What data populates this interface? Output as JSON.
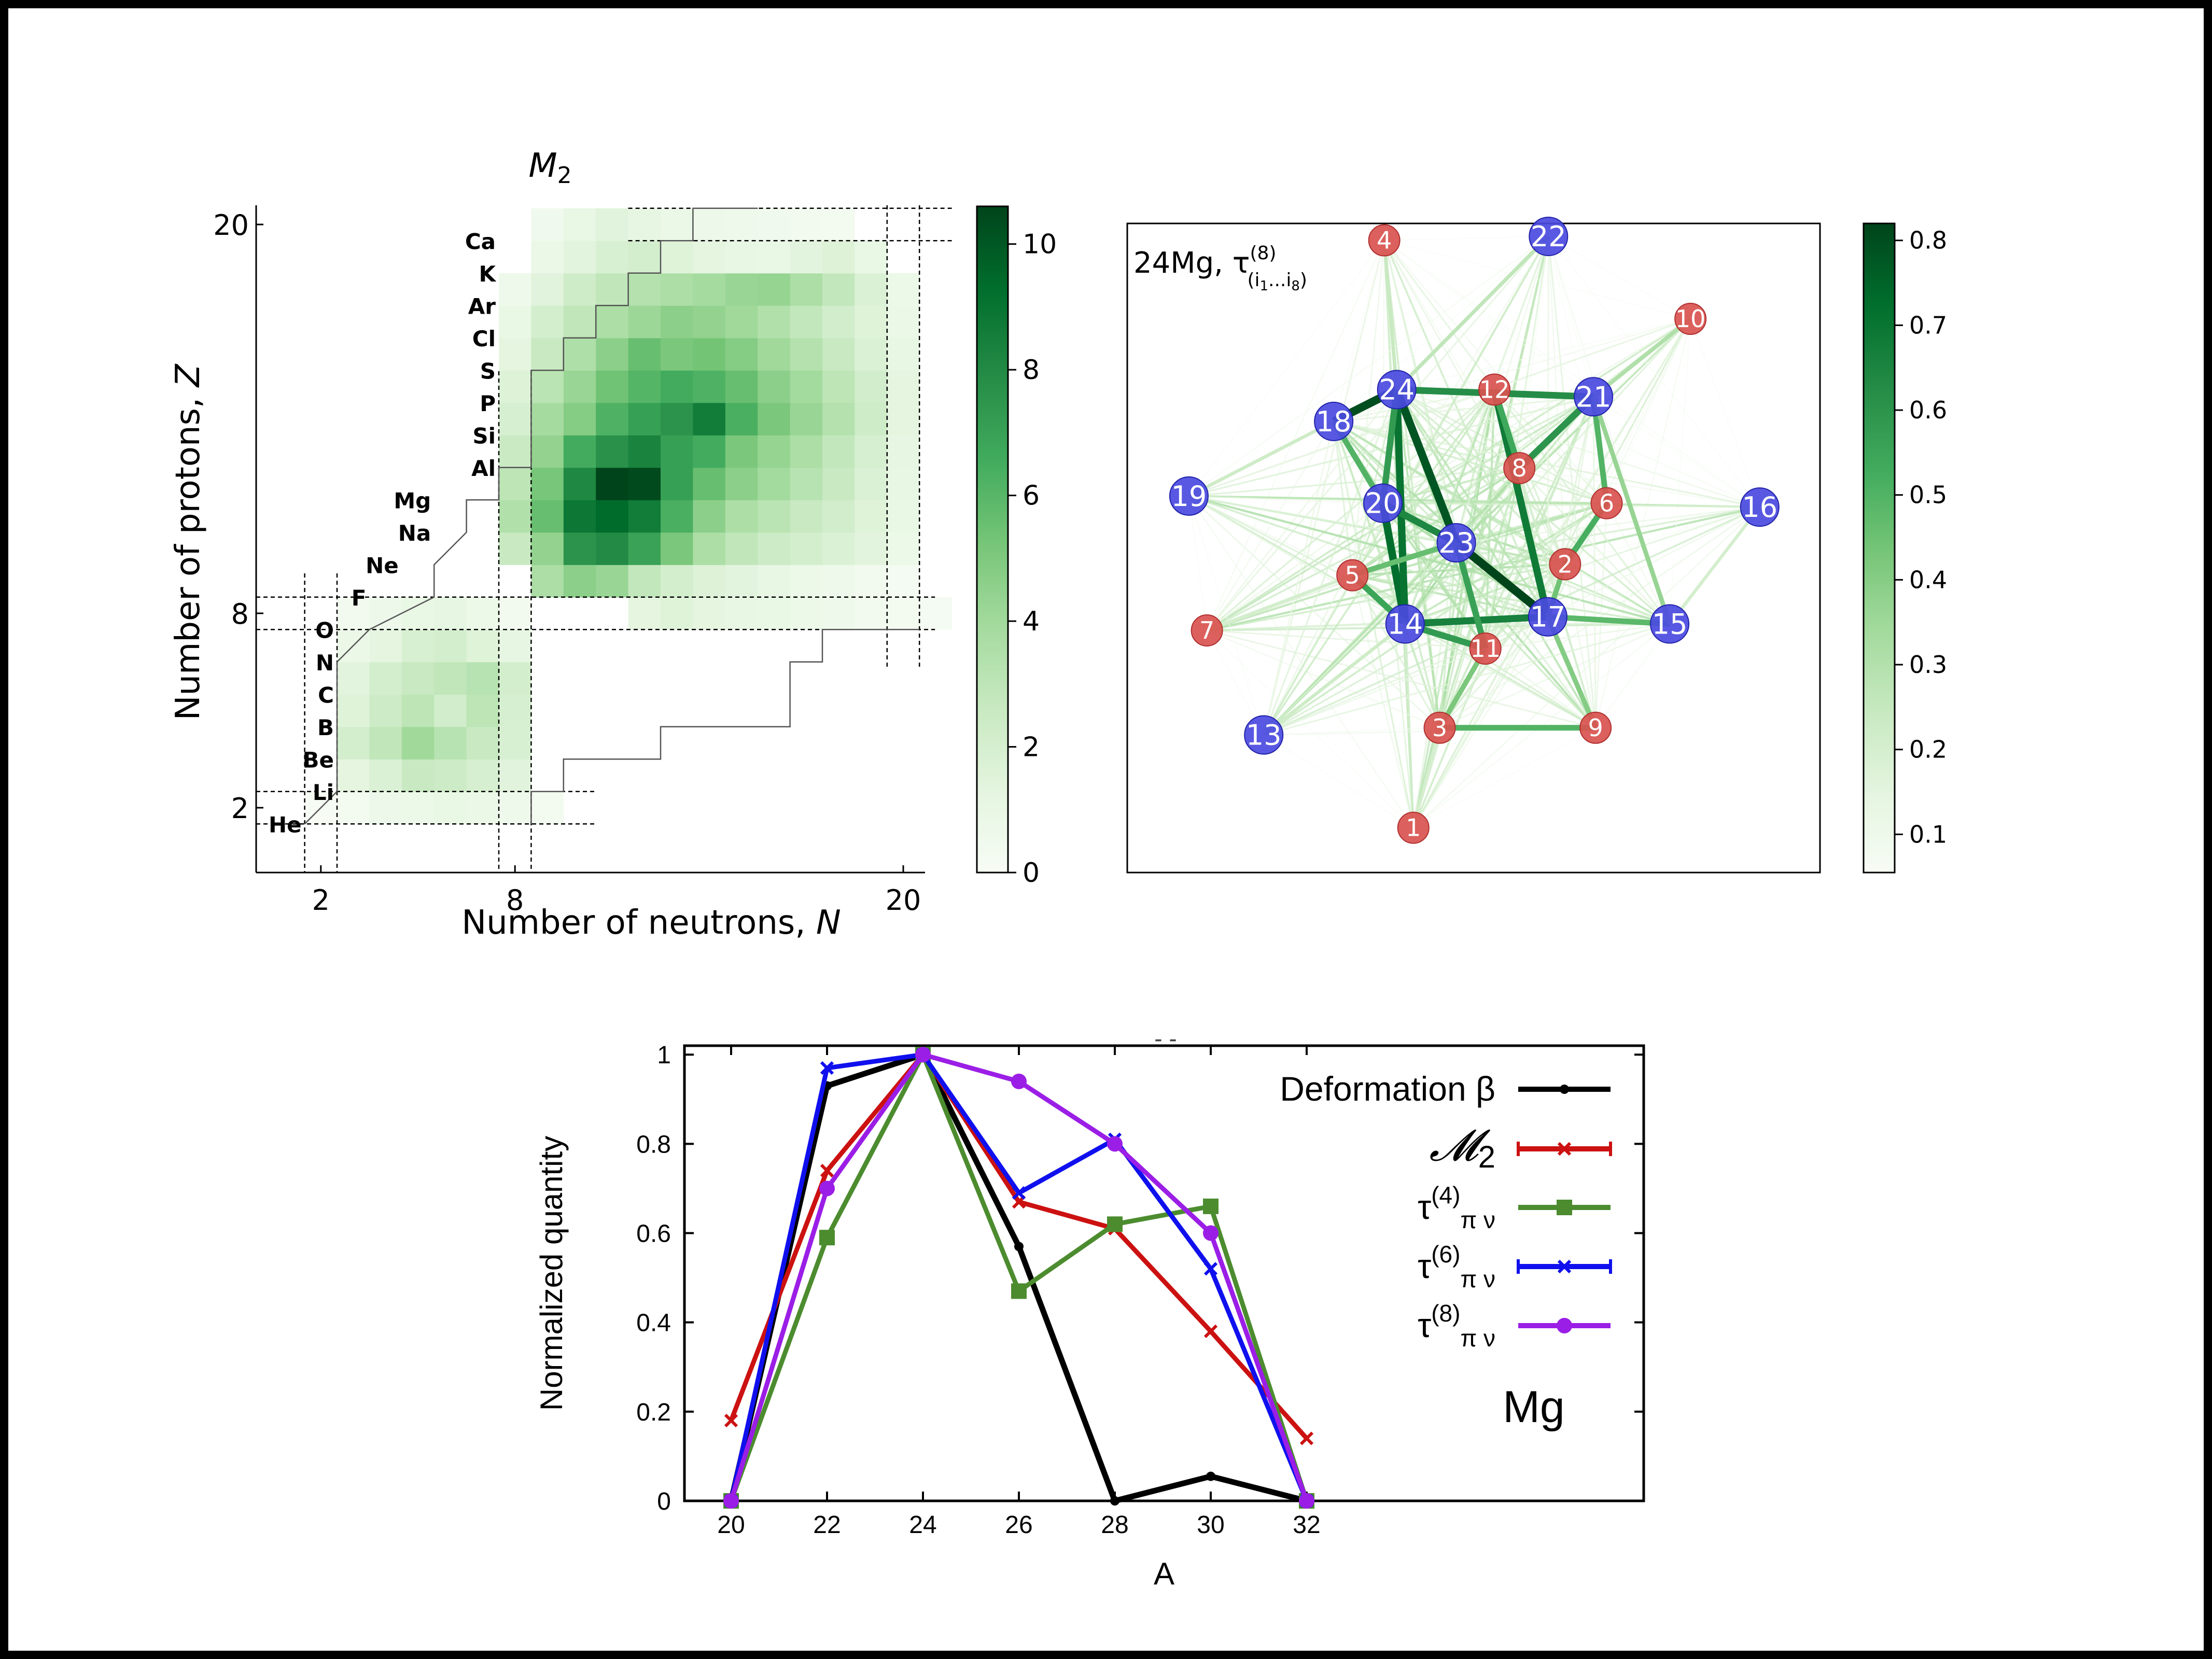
{
  "chart_data": [
    {
      "type": "heatmap",
      "title_main": "M",
      "title_sub": "2",
      "xlabel_main": "Number of neutrons, ",
      "xlabel_var": "N",
      "ylabel_main": "Number of protons, ",
      "ylabel_var": "Z",
      "xticks": [
        "2",
        "8",
        "20"
      ],
      "yticks": [
        "2",
        "8",
        "20"
      ],
      "colorbar_ticks": [
        "0",
        "2",
        "4",
        "6",
        "8",
        "10"
      ],
      "colorbar_range": [
        0,
        10.6
      ],
      "colormap": [
        "#f7fcf5",
        "#00441b"
      ],
      "elements": [
        {
          "symbol": "He",
          "Z": 2
        },
        {
          "symbol": "Li",
          "Z": 3
        },
        {
          "symbol": "Be",
          "Z": 4
        },
        {
          "symbol": "B",
          "Z": 5
        },
        {
          "symbol": "C",
          "Z": 6
        },
        {
          "symbol": "N",
          "Z": 7
        },
        {
          "symbol": "O",
          "Z": 8
        },
        {
          "symbol": "F",
          "Z": 9
        },
        {
          "symbol": "Ne",
          "Z": 10
        },
        {
          "symbol": "Na",
          "Z": 11
        },
        {
          "symbol": "Mg",
          "Z": 12
        },
        {
          "symbol": "Al",
          "Z": 13
        },
        {
          "symbol": "Si",
          "Z": 14
        },
        {
          "symbol": "P",
          "Z": 15
        },
        {
          "symbol": "S",
          "Z": 16
        },
        {
          "symbol": "Cl",
          "Z": 17
        },
        {
          "symbol": "Ar",
          "Z": 18
        },
        {
          "symbol": "K",
          "Z": 19
        },
        {
          "symbol": "Ca",
          "Z": 20
        }
      ],
      "rows": [
        {
          "Z": 2,
          "n_start": 2,
          "values": [
            0.1,
            0.3,
            0.7,
            0.8,
            1.0,
            0.9,
            0.6,
            0.3
          ]
        },
        {
          "Z": 3,
          "n_start": 3,
          "values": [
            1.3,
            1.8,
            2.6,
            2.4,
            2.0,
            1.5
          ]
        },
        {
          "Z": 4,
          "n_start": 3,
          "values": [
            2.1,
            2.9,
            4.0,
            3.2,
            2.6,
            1.9
          ]
        },
        {
          "Z": 5,
          "n_start": 3,
          "values": [
            1.6,
            2.4,
            3.0,
            2.2,
            3.0,
            2.0
          ]
        },
        {
          "Z": 6,
          "n_start": 3,
          "values": [
            1.4,
            2.1,
            2.6,
            2.9,
            3.2,
            2.1
          ]
        },
        {
          "Z": 7,
          "n_start": 3,
          "values": [
            0.9,
            1.3,
            1.9,
            2.1,
            1.6,
            1.2
          ]
        },
        {
          "Z": 8,
          "n_start": 3,
          "values": [
            0.4,
            0.7,
            1.0,
            1.2,
            0.8,
            0.4,
            0,
            0,
            0,
            1.3,
            1.6,
            1.3,
            1.1,
            1.0,
            0.8,
            0.6,
            0.4,
            0.3,
            0.2
          ]
        },
        {
          "Z": 9,
          "n_start": 9,
          "values": [
            3.6,
            4.6,
            4.2,
            2.8,
            2.1,
            1.7,
            1.4,
            1.1,
            0.8,
            0.6,
            0.4,
            0.2
          ]
        },
        {
          "Z": 10,
          "n_start": 8,
          "values": [
            2.6,
            4.4,
            7.6,
            8.0,
            7.0,
            5.1,
            3.6,
            2.9,
            2.4,
            2.1,
            1.8,
            1.4,
            0.8
          ]
        },
        {
          "Z": 11,
          "n_start": 8,
          "values": [
            3.4,
            5.6,
            8.8,
            9.3,
            8.6,
            6.4,
            4.6,
            3.6,
            3.1,
            2.6,
            2.2,
            1.6,
            1.0
          ]
        },
        {
          "Z": 12,
          "n_start": 8,
          "values": [
            3.0,
            5.2,
            8.1,
            10.6,
            10.4,
            7.1,
            5.6,
            4.6,
            3.9,
            3.2,
            2.6,
            1.8,
            1.1
          ]
        },
        {
          "Z": 13,
          "n_start": 8,
          "values": [
            2.5,
            4.4,
            6.6,
            7.7,
            8.3,
            7.1,
            6.6,
            5.1,
            4.3,
            3.6,
            2.8,
            2.0,
            1.2
          ]
        },
        {
          "Z": 14,
          "n_start": 8,
          "values": [
            2.0,
            3.8,
            4.8,
            6.3,
            7.1,
            7.6,
            8.6,
            6.4,
            5.1,
            4.2,
            3.3,
            2.3,
            1.3
          ]
        },
        {
          "Z": 15,
          "n_start": 8,
          "values": [
            1.7,
            3.1,
            4.2,
            5.4,
            6.1,
            6.6,
            6.3,
            5.6,
            4.6,
            3.9,
            3.0,
            2.2,
            1.3
          ]
        },
        {
          "Z": 16,
          "n_start": 8,
          "values": [
            1.3,
            2.6,
            3.5,
            4.6,
            5.6,
            5.1,
            5.3,
            4.8,
            4.0,
            3.3,
            2.6,
            1.8,
            1.1
          ]
        },
        {
          "Z": 17,
          "n_start": 8,
          "values": [
            1.0,
            2.1,
            2.9,
            3.6,
            4.1,
            4.6,
            4.4,
            4.0,
            3.4,
            2.8,
            2.2,
            1.6,
            0.9
          ]
        },
        {
          "Z": 18,
          "n_start": 8,
          "values": [
            0.6,
            1.5,
            2.3,
            2.9,
            3.3,
            3.6,
            3.8,
            4.2,
            4.3,
            3.6,
            2.8,
            1.8,
            0.8
          ]
        },
        {
          "Z": 19,
          "n_start": 9,
          "values": [
            0.9,
            1.4,
            1.9,
            2.1,
            1.6,
            1.3,
            1.1,
            1.0,
            1.4,
            1.7,
            1.0
          ]
        },
        {
          "Z": 20,
          "n_start": 9,
          "values": [
            0.5,
            1.0,
            1.5,
            1.2,
            0.9,
            0.7,
            0.6,
            0.5,
            0.4,
            0.3
          ]
        }
      ]
    },
    {
      "type": "network",
      "title_prefix": "24Mg, τ",
      "title_sup": "(8)",
      "title_sub": "(i",
      "title_sub2": "1",
      "title_sub3": "...i",
      "title_sub4": "8",
      "title_sub5": ")",
      "colorbar_ticks": [
        "0.1",
        "0.2",
        "0.3",
        "0.4",
        "0.5",
        "0.6",
        "0.7",
        "0.8"
      ],
      "colorbar_range": [
        0.055,
        0.82
      ],
      "proton_color": "#d9534f",
      "neutron_color": "#4a4ae0",
      "nodes": [
        {
          "id": "1",
          "type": "proton",
          "x": 0.413,
          "y": 0.069
        },
        {
          "id": "2",
          "type": "proton",
          "x": 0.632,
          "y": 0.475
        },
        {
          "id": "3",
          "type": "proton",
          "x": 0.451,
          "y": 0.223
        },
        {
          "id": "4",
          "type": "proton",
          "x": 0.371,
          "y": 0.974
        },
        {
          "id": "5",
          "type": "proton",
          "x": 0.325,
          "y": 0.458
        },
        {
          "id": "6",
          "type": "proton",
          "x": 0.692,
          "y": 0.569
        },
        {
          "id": "7",
          "type": "proton",
          "x": 0.115,
          "y": 0.373
        },
        {
          "id": "8",
          "type": "proton",
          "x": 0.566,
          "y": 0.623
        },
        {
          "id": "9",
          "type": "proton",
          "x": 0.676,
          "y": 0.223
        },
        {
          "id": "10",
          "type": "proton",
          "x": 0.813,
          "y": 0.853
        },
        {
          "id": "11",
          "type": "proton",
          "x": 0.517,
          "y": 0.345
        },
        {
          "id": "12",
          "type": "proton",
          "x": 0.53,
          "y": 0.744
        },
        {
          "id": "13",
          "type": "neutron",
          "x": 0.197,
          "y": 0.212
        },
        {
          "id": "14",
          "type": "neutron",
          "x": 0.401,
          "y": 0.383
        },
        {
          "id": "15",
          "type": "neutron",
          "x": 0.783,
          "y": 0.383
        },
        {
          "id": "16",
          "type": "neutron",
          "x": 0.913,
          "y": 0.563
        },
        {
          "id": "17",
          "type": "neutron",
          "x": 0.607,
          "y": 0.394
        },
        {
          "id": "18",
          "type": "neutron",
          "x": 0.298,
          "y": 0.695
        },
        {
          "id": "19",
          "type": "neutron",
          "x": 0.089,
          "y": 0.58
        },
        {
          "id": "20",
          "type": "neutron",
          "x": 0.369,
          "y": 0.569
        },
        {
          "id": "21",
          "type": "neutron",
          "x": 0.673,
          "y": 0.733
        },
        {
          "id": "22",
          "type": "neutron",
          "x": 0.608,
          "y": 0.98
        },
        {
          "id": "23",
          "type": "neutron",
          "x": 0.475,
          "y": 0.508
        },
        {
          "id": "24",
          "type": "neutron",
          "x": 0.389,
          "y": 0.744
        }
      ],
      "edges": [
        {
          "a": "23",
          "b": "17",
          "w": 0.82
        },
        {
          "a": "24",
          "b": "23",
          "w": 0.78
        },
        {
          "a": "18",
          "b": "24",
          "w": 0.8
        },
        {
          "a": "20",
          "b": "14",
          "w": 0.72
        },
        {
          "a": "24",
          "b": "14",
          "w": 0.7
        },
        {
          "a": "12",
          "b": "17",
          "w": 0.68
        },
        {
          "a": "14",
          "b": "17",
          "w": 0.66
        },
        {
          "a": "24",
          "b": "21",
          "w": 0.62
        },
        {
          "a": "8",
          "b": "21",
          "w": 0.6
        },
        {
          "a": "20",
          "b": "23",
          "w": 0.64
        },
        {
          "a": "5",
          "b": "14",
          "w": 0.55
        },
        {
          "a": "14",
          "b": "11",
          "w": 0.58
        },
        {
          "a": "23",
          "b": "11",
          "w": 0.56
        },
        {
          "a": "6",
          "b": "2",
          "w": 0.52
        },
        {
          "a": "3",
          "b": "9",
          "w": 0.5
        },
        {
          "a": "17",
          "b": "15",
          "w": 0.48
        },
        {
          "a": "24",
          "b": "20",
          "w": 0.58
        },
        {
          "a": "12",
          "b": "8",
          "w": 0.54
        },
        {
          "a": "21",
          "b": "6",
          "w": 0.5
        },
        {
          "a": "5",
          "b": "23",
          "w": 0.46
        },
        {
          "a": "18",
          "b": "20",
          "w": 0.5
        },
        {
          "a": "2",
          "b": "17",
          "w": 0.44
        },
        {
          "a": "3",
          "b": "11",
          "w": 0.42
        },
        {
          "a": "9",
          "b": "17",
          "w": 0.4
        },
        {
          "a": "15",
          "b": "21",
          "w": 0.36
        },
        {
          "a": "10",
          "b": "21",
          "w": 0.3
        },
        {
          "a": "22",
          "b": "24",
          "w": 0.26
        },
        {
          "a": "4",
          "b": "24",
          "w": 0.24
        },
        {
          "a": "19",
          "b": "18",
          "w": 0.22
        },
        {
          "a": "13",
          "b": "14",
          "w": 0.22
        },
        {
          "a": "7",
          "b": "5",
          "w": 0.2
        },
        {
          "a": "16",
          "b": "15",
          "w": 0.2
        },
        {
          "a": "1",
          "b": "3",
          "w": 0.2
        }
      ]
    },
    {
      "type": "line",
      "xlabel": "A",
      "ylabel": "Normalized quantity",
      "x": [
        20,
        22,
        24,
        26,
        28,
        30,
        32
      ],
      "xlim": [
        19.5,
        39.5
      ],
      "ylim": [
        0,
        1.02
      ],
      "xticks": [
        "20",
        "22",
        "24",
        "26",
        "28",
        "30",
        "32"
      ],
      "yticks": [
        "0",
        "0.2",
        "0.4",
        "0.6",
        "0.8",
        "1"
      ],
      "annotation": "Mg",
      "legend_position": "top-right",
      "series": [
        {
          "name": "Deformation β",
          "color": "#000000",
          "marker": "dot",
          "values": [
            0.0,
            0.93,
            1.0,
            0.57,
            0.0,
            0.055,
            0.0
          ]
        },
        {
          "name": "M2",
          "name_main": "𝓜",
          "name_sub": "2",
          "color": "#cc1111",
          "marker": "x",
          "values": [
            0.18,
            0.74,
            1.0,
            0.67,
            0.61,
            0.38,
            0.14
          ]
        },
        {
          "name": "τ(4)πν",
          "name_main": "τ",
          "name_sup": "(4)",
          "name_sub": "π ν",
          "color": "#4c8c2f",
          "marker": "square",
          "values": [
            0.0,
            0.59,
            1.0,
            0.47,
            0.62,
            0.66,
            0.0
          ]
        },
        {
          "name": "τ(6)πν",
          "name_main": "τ",
          "name_sup": "(6)",
          "name_sub": "π ν",
          "color": "#1010ee",
          "marker": "x",
          "values": [
            0.0,
            0.97,
            1.0,
            0.69,
            0.81,
            0.52,
            0.0
          ]
        },
        {
          "name": "τ(8)πν",
          "name_main": "τ",
          "name_sup": "(8)",
          "name_sub": "π ν",
          "color": "#9b1ee6",
          "marker": "circle",
          "values": [
            0.0,
            0.7,
            1.0,
            0.94,
            0.8,
            0.6,
            0.0
          ]
        }
      ]
    }
  ]
}
